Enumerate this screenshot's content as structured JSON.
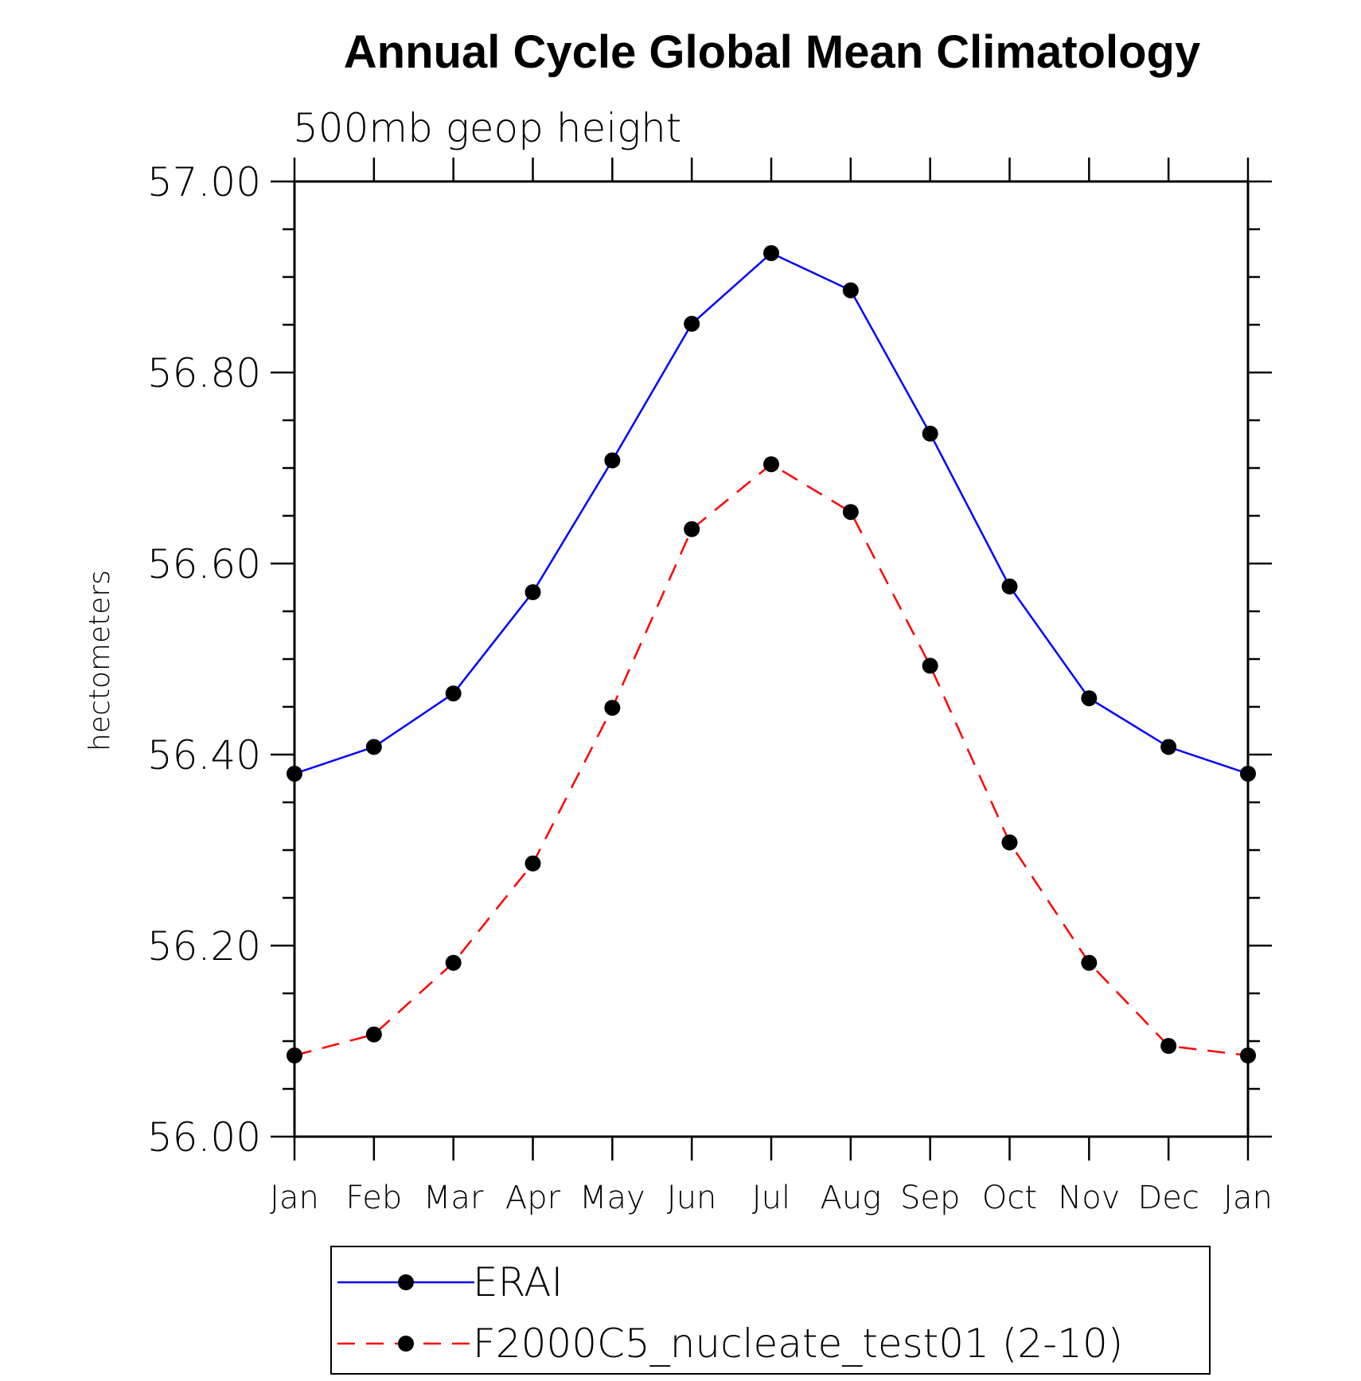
{
  "chart_data": {
    "type": "line",
    "title": "Annual Cycle Global Mean Climatology",
    "subtitle": "500mb geop height",
    "xlabel": "",
    "ylabel": "hectometers",
    "categories": [
      "Jan",
      "Feb",
      "Mar",
      "Apr",
      "May",
      "Jun",
      "Jul",
      "Aug",
      "Sep",
      "Oct",
      "Nov",
      "Dec",
      "Jan"
    ],
    "y_ticks": [
      "56.00",
      "56.20",
      "56.40",
      "56.60",
      "56.80",
      "57.00"
    ],
    "ylim": [
      56.0,
      57.0
    ],
    "y_minor_step": 0.05,
    "grid": false,
    "legend_position": "bottom",
    "series": [
      {
        "name": "ERAI",
        "color": "#0000ff",
        "line_style": "solid",
        "marker": "filled-circle",
        "values": [
          56.38,
          56.408,
          56.464,
          56.57,
          56.708,
          56.851,
          56.925,
          56.886,
          56.736,
          56.576,
          56.459,
          56.408,
          56.38
        ]
      },
      {
        "name": "F2000C5_nucleate_test01 (2-10)",
        "color": "#ff0000",
        "line_style": "dashed",
        "marker": "filled-circle",
        "values": [
          56.085,
          56.107,
          56.182,
          56.286,
          56.449,
          56.636,
          56.704,
          56.654,
          56.493,
          56.308,
          56.182,
          56.095,
          56.085
        ]
      }
    ]
  }
}
